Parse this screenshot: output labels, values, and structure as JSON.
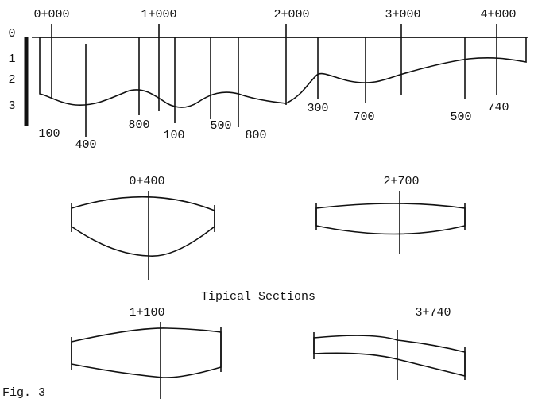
{
  "stations": [
    "0+000",
    "1+000",
    "2+000",
    "3+000",
    "4+000"
  ],
  "depth_scale": [
    "0",
    "1",
    "2",
    "3"
  ],
  "profile_labels": [
    "100",
    "400",
    "800",
    "100",
    "500",
    "800",
    "300",
    "700",
    "500",
    "740"
  ],
  "sections": [
    {
      "label": "0+400"
    },
    {
      "label": "2+700"
    },
    {
      "label": "1+100"
    },
    {
      "label": "3+740"
    }
  ],
  "caption": "Tipical Sections",
  "figure_label": "Fig. 3"
}
